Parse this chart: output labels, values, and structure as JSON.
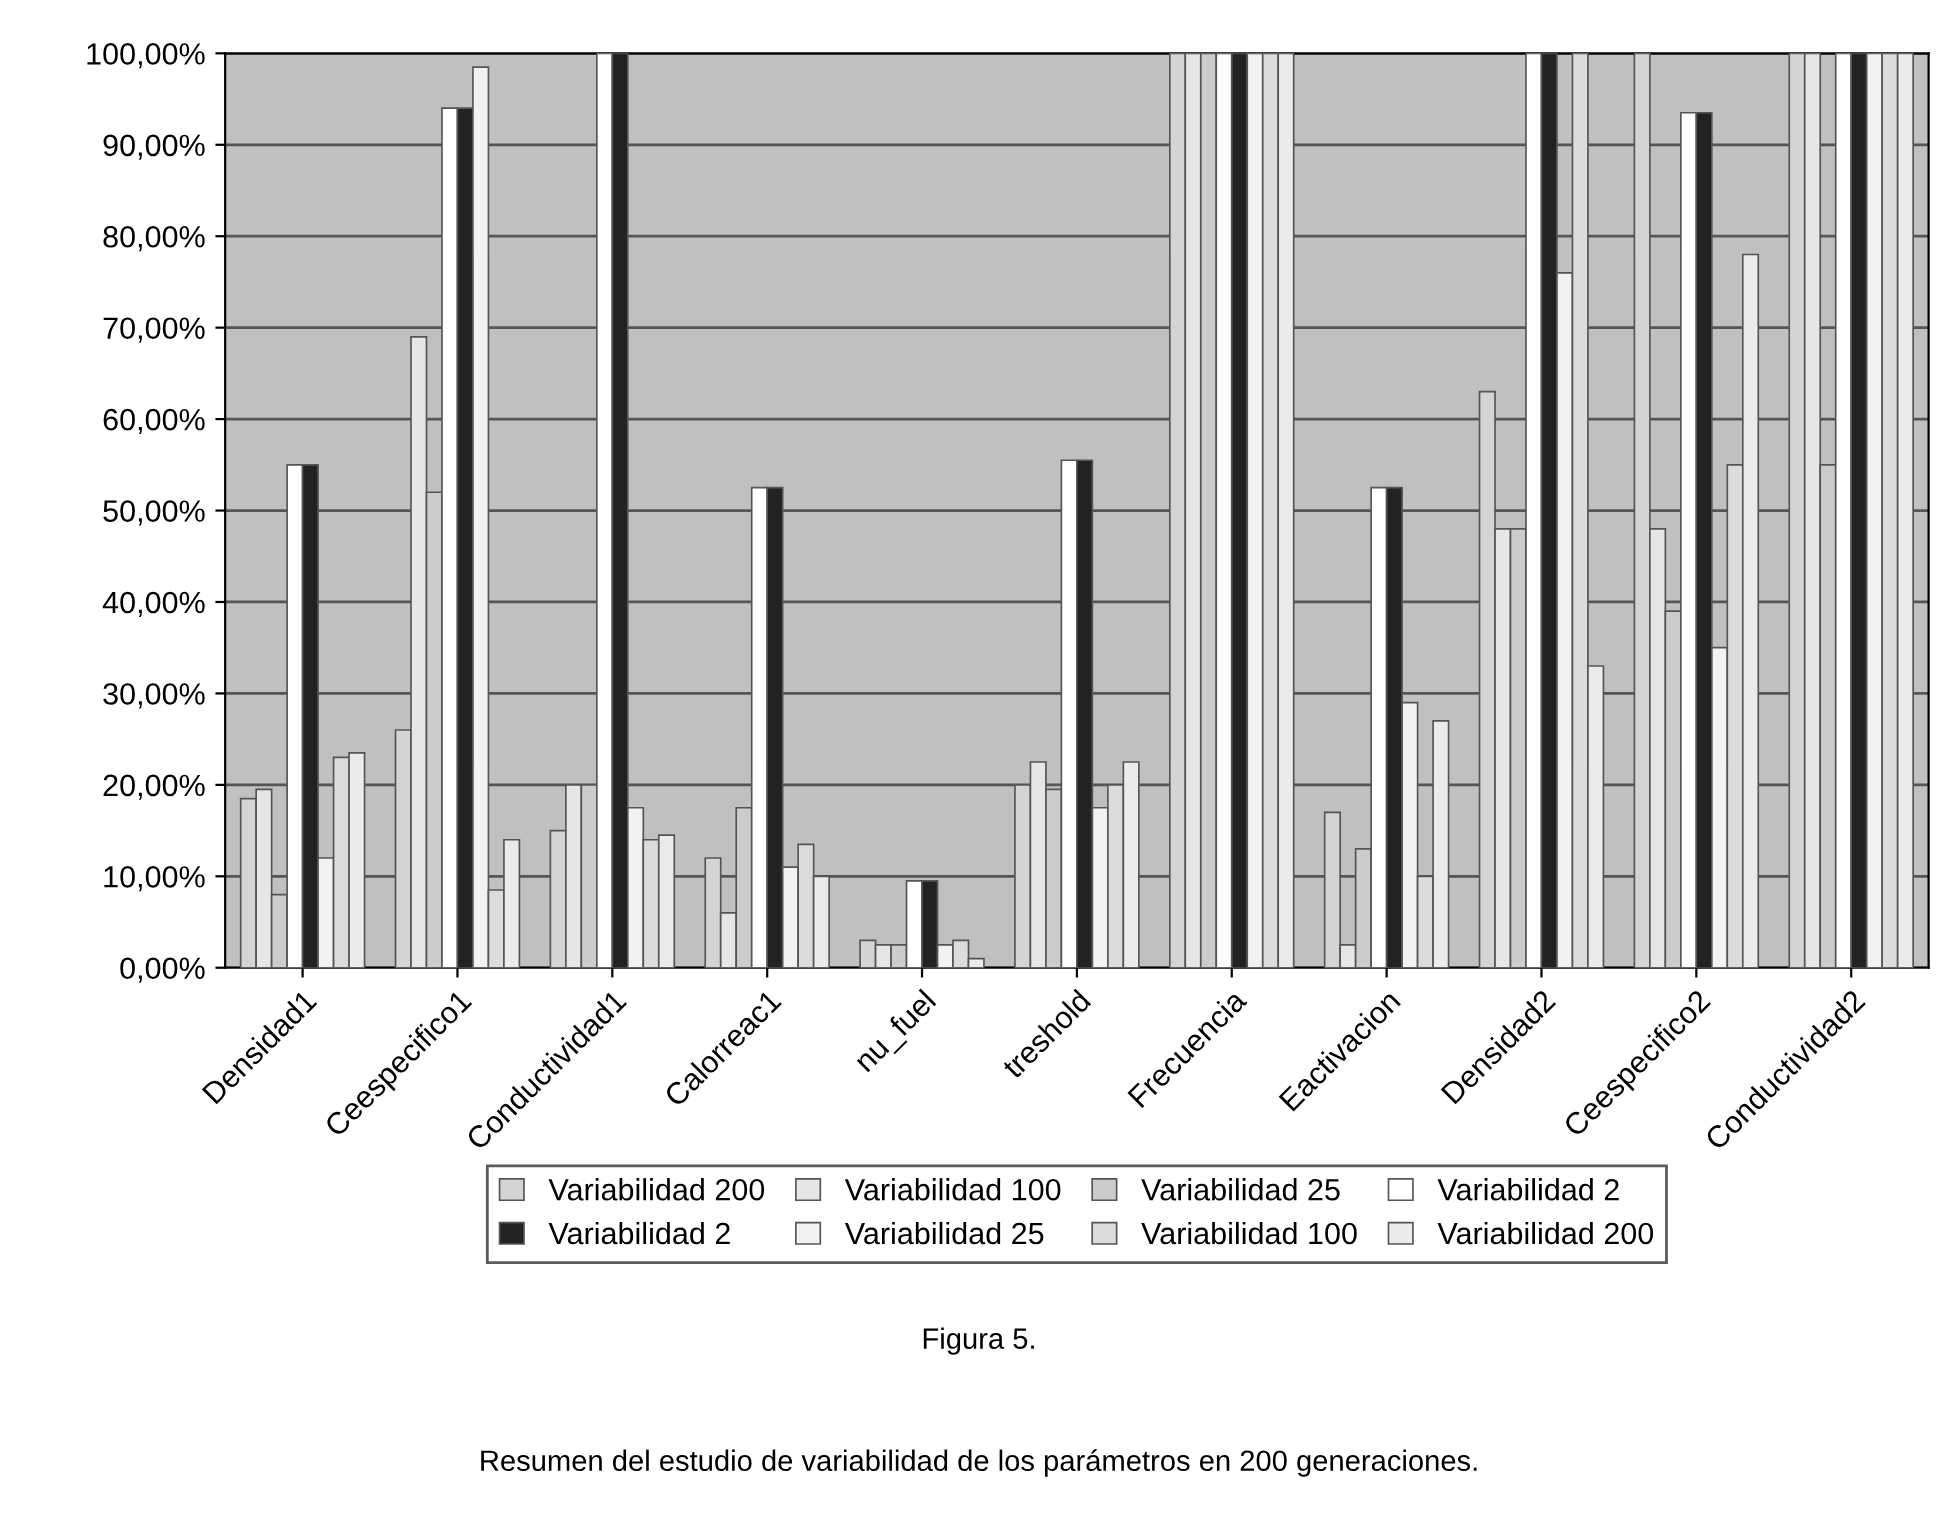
{
  "chart_data": {
    "type": "bar",
    "categories": [
      "Densidad1",
      "Ceespecifico1",
      "Conductividad1",
      "Calorreac1",
      "nu_fuel",
      "treshold",
      "Frecuencia",
      "Eactivacion",
      "Densidad2",
      "Ceespecifico2",
      "Conductividad2"
    ],
    "series": [
      {
        "name": "Variabilidad 200",
        "color": "#d4d4d4",
        "values": [
          18.5,
          26,
          15,
          12,
          3,
          20,
          100,
          17,
          63,
          100,
          100
        ]
      },
      {
        "name": "Variabilidad 100",
        "color": "#e6e6e6",
        "values": [
          19.5,
          69,
          20,
          6,
          2.5,
          22.5,
          100,
          2.5,
          48,
          48,
          100
        ]
      },
      {
        "name": "Variabilidad 25",
        "color": "#cccccc",
        "values": [
          8,
          52,
          20,
          17.5,
          2.5,
          19.5,
          100,
          13,
          48,
          39,
          55
        ]
      },
      {
        "name": "Variabilidad 2",
        "color": "#ffffff",
        "values": [
          55,
          94,
          100,
          52.5,
          9.5,
          55.5,
          100,
          52.5,
          100,
          93.5,
          100
        ]
      },
      {
        "name": "Variabilidad 2",
        "color": "#222222",
        "values": [
          55,
          94,
          100,
          52.5,
          9.5,
          55.5,
          100,
          52.5,
          100,
          93.5,
          100
        ]
      },
      {
        "name": "Variabilidad 25",
        "color": "#f2f2f2",
        "values": [
          12,
          98.5,
          17.5,
          11,
          2.5,
          17.5,
          100,
          29,
          76,
          35,
          100
        ]
      },
      {
        "name": "Variabilidad 100",
        "color": "#dcdcdc",
        "values": [
          23,
          8.5,
          14,
          13.5,
          3,
          20,
          100,
          10,
          100,
          55,
          100
        ]
      },
      {
        "name": "Variabilidad 200",
        "color": "#ebebeb",
        "values": [
          23.5,
          14,
          14.5,
          10,
          1,
          22.5,
          100,
          27,
          33,
          78,
          100
        ]
      }
    ],
    "ylim": [
      0,
      100
    ],
    "yticks": [
      {
        "value": 0,
        "label": "0,00%"
      },
      {
        "value": 10,
        "label": "10,00%"
      },
      {
        "value": 20,
        "label": "20,00%"
      },
      {
        "value": 30,
        "label": "30,00%"
      },
      {
        "value": 40,
        "label": "40,00%"
      },
      {
        "value": 50,
        "label": "50,00%"
      },
      {
        "value": 60,
        "label": "60,00%"
      },
      {
        "value": 70,
        "label": "70,00%"
      },
      {
        "value": 80,
        "label": "80,00%"
      },
      {
        "value": 90,
        "label": "90,00%"
      },
      {
        "value": 100,
        "label": "100,00%"
      }
    ],
    "grid": "y",
    "legend": "bottom",
    "annotations": [
      "Figura 5.",
      "Resumen del estudio de variabilidad de los parámetros en 200 generaciones."
    ]
  }
}
